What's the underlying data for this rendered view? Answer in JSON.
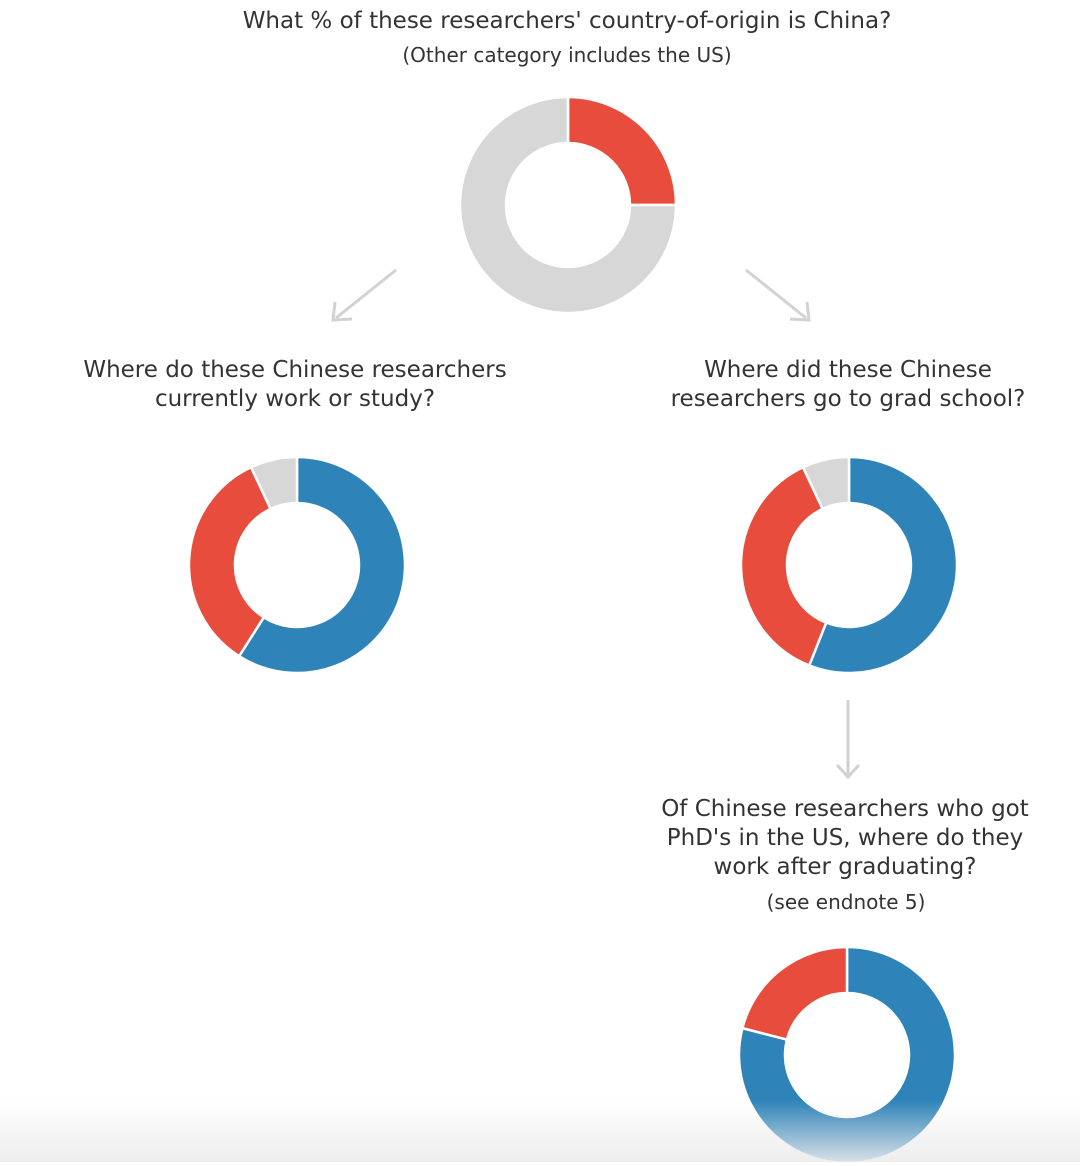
{
  "colors": {
    "red": "#e74c3c",
    "blue": "#2e83b8",
    "gray": "#d7d7d7",
    "arrow": "#d2d2d2",
    "text": "#333333"
  },
  "chart_data": [
    {
      "type": "pie",
      "title": "What % of these researchers' country-of-origin is China?",
      "subtitle": "(Other category includes the US)",
      "slices": [
        {
          "value": 25,
          "color": "#e74c3c"
        },
        {
          "value": 75,
          "color": "#d7d7d7"
        }
      ]
    },
    {
      "type": "pie",
      "title": "Where do these Chinese researchers currently work or study?",
      "title_lines": [
        "Where do these Chinese researchers",
        "currently work or study?"
      ],
      "slices": [
        {
          "value": 59,
          "color": "#2e83b8"
        },
        {
          "value": 34,
          "color": "#e74c3c"
        },
        {
          "value": 7,
          "color": "#d7d7d7"
        }
      ]
    },
    {
      "type": "pie",
      "title": "Where did these Chinese researchers go to grad school?",
      "title_lines": [
        "Where did these Chinese",
        "researchers go to grad school?"
      ],
      "slices": [
        {
          "value": 56,
          "color": "#2e83b8"
        },
        {
          "value": 37,
          "color": "#e74c3c"
        },
        {
          "value": 7,
          "color": "#d7d7d7"
        }
      ]
    },
    {
      "type": "pie",
      "title": "Of Chinese researchers who got PhD's in the US, where do they work after graduating?",
      "title_lines": [
        "Of Chinese researchers who got",
        "PhD's in the US, where do they",
        "work after graduating?"
      ],
      "subtitle": "(see endnote 5)",
      "slices": [
        {
          "value": 79,
          "color": "#2e83b8"
        },
        {
          "value": 21,
          "color": "#e74c3c"
        }
      ]
    }
  ]
}
